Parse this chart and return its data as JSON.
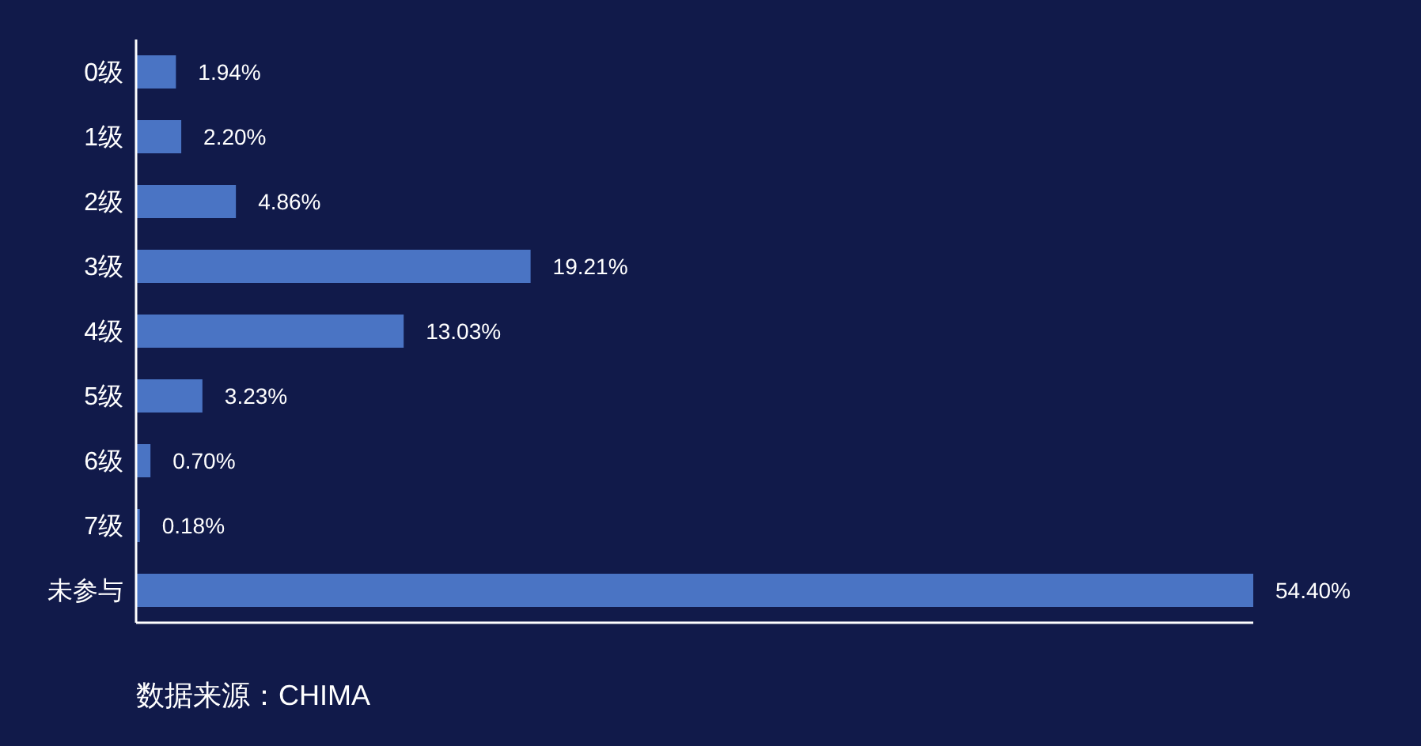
{
  "chart_data": {
    "type": "bar",
    "orientation": "horizontal",
    "categories": [
      "0级",
      "1级",
      "2级",
      "3级",
      "4级",
      "5级",
      "6级",
      "7级",
      "未参与"
    ],
    "values": [
      1.94,
      2.2,
      4.86,
      19.21,
      13.03,
      3.23,
      0.7,
      0.18,
      54.4
    ],
    "value_labels": [
      "1.94%",
      "2.20%",
      "4.86%",
      "19.21%",
      "13.03%",
      "3.23%",
      "0.70%",
      "0.18%",
      "54.40%"
    ],
    "color": "#4a74c4",
    "annotations": [
      "数据来源：CHIMA"
    ]
  }
}
